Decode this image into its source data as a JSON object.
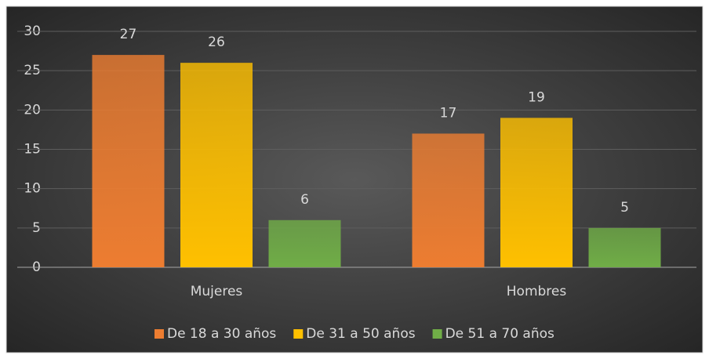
{
  "chart_data": {
    "type": "bar",
    "categories": [
      "Mujeres",
      "Hombres"
    ],
    "series": [
      {
        "name": "De 18 a 30 años",
        "color": "#ed7d31",
        "values": [
          27,
          17
        ]
      },
      {
        "name": "De 31 a 50 años",
        "color": "#ffc000",
        "values": [
          26,
          19
        ]
      },
      {
        "name": "De 51 a 70 años",
        "color": "#70ad47",
        "values": [
          6,
          5
        ]
      }
    ],
    "ylim": [
      0,
      30
    ],
    "yticks": [
      0,
      5,
      10,
      15,
      20,
      25,
      30
    ],
    "grid": true,
    "legend": "bottom"
  }
}
